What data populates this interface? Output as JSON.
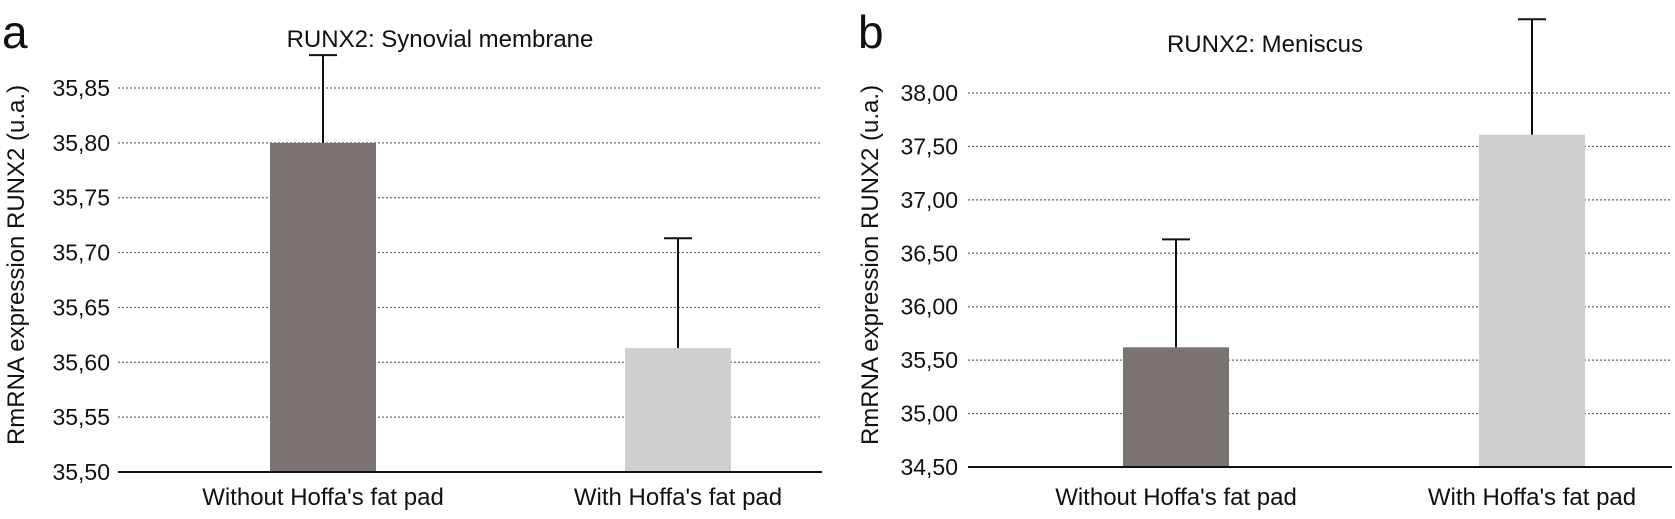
{
  "panels": [
    {
      "letter": "a"
    },
    {
      "letter": "b"
    }
  ],
  "colors": {
    "without": "#7a7372",
    "with": "#cfcfcf"
  },
  "chart_data": [
    {
      "type": "bar",
      "title": "RUNX2: Synovial membrane",
      "xlabel": "",
      "ylabel": "RmRNA expression RUNX2 (u.a.)",
      "categories": [
        "Without Hoffa's fat pad",
        "With Hoffa's fat pad"
      ],
      "values": [
        35.8,
        35.613
      ],
      "error_upper": [
        0.08,
        0.1
      ],
      "ylim": [
        35.5,
        35.85
      ],
      "yticks": [
        35.5,
        35.55,
        35.6,
        35.65,
        35.7,
        35.75,
        35.8,
        35.85
      ],
      "ytick_labels": [
        "35,50",
        "35,55",
        "35,60",
        "35,65",
        "35,70",
        "35,75",
        "35,80",
        "35,85"
      ],
      "grid": true
    },
    {
      "type": "bar",
      "title": "RUNX2: Meniscus",
      "xlabel": "",
      "ylabel": "RmRNA expression RUNX2 (u.a.)",
      "categories": [
        "Without Hoffa's fat pad",
        "With Hoffa's fat pad"
      ],
      "values": [
        35.62,
        37.61
      ],
      "error_upper": [
        1.01,
        1.08
      ],
      "ylim": [
        34.5,
        38.0
      ],
      "yticks": [
        34.5,
        35.0,
        35.5,
        36.0,
        36.5,
        37.0,
        37.5,
        38.0
      ],
      "ytick_labels": [
        "34,50",
        "35,00",
        "35,50",
        "36,00",
        "36,50",
        "37,00",
        "37,50",
        "38,00"
      ],
      "grid": true
    }
  ]
}
